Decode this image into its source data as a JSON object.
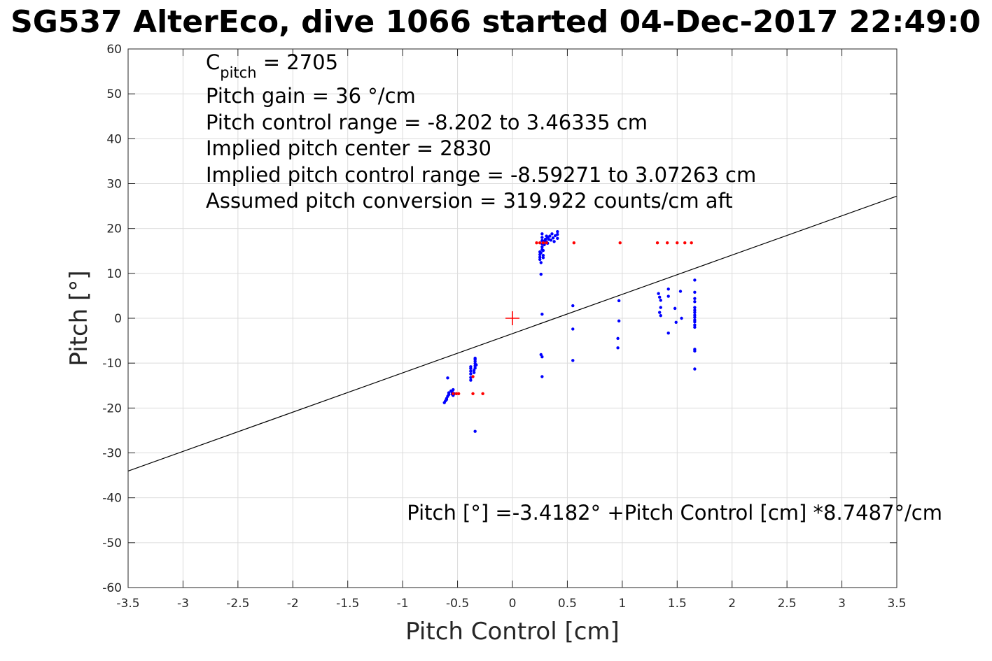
{
  "chart_data": {
    "type": "scatter",
    "title": "SG537 AlterEco, dive 1066 started 04-Dec-2017 22:49:0",
    "xlabel": "Pitch Control [cm]",
    "ylabel": "Pitch [°]",
    "xlim": [
      -3.5,
      3.5
    ],
    "ylim": [
      -60,
      60
    ],
    "xticks": [
      -3.5,
      -3,
      -2.5,
      -2,
      -1.5,
      -1,
      -0.5,
      0,
      0.5,
      1,
      1.5,
      2,
      2.5,
      3,
      3.5
    ],
    "xtick_labels": [
      "-3.5",
      "-3",
      "-2.5",
      "-2",
      "-1.5",
      "-1",
      "-0.5",
      "0",
      "0.5",
      "1",
      "1.5",
      "2",
      "2.5",
      "3",
      "3.5"
    ],
    "yticks": [
      -60,
      -50,
      -40,
      -30,
      -20,
      -10,
      0,
      10,
      20,
      30,
      40,
      50,
      60
    ],
    "ytick_labels": [
      "-60",
      "-50",
      "-40",
      "-30",
      "-20",
      "-10",
      "0",
      "10",
      "20",
      "30",
      "40",
      "50",
      "60"
    ],
    "grid": true,
    "colors": {
      "measured": "#0000ff",
      "commanded": "#ff0000",
      "fit": "#000000",
      "center": "#ff0000",
      "grid": "#dcdcdc",
      "axes": "#262626"
    },
    "annotations": {
      "c_pitch_main": "C",
      "c_pitch_sub": "pitch",
      "c_pitch_value": " = 2705",
      "pitch_gain": "Pitch gain = 36 °/cm",
      "pitch_control_range": "Pitch control range = -8.202 to 3.46335 cm",
      "implied_center": "Implied pitch center = 2830",
      "implied_range": "Implied pitch control range = -8.59271 to 3.07263 cm",
      "assumed_conversion": "Assumed pitch conversion = 319.922 counts/cm aft",
      "fit_equation": "Pitch [°] =-3.4182° +Pitch Control [cm] *8.7487°/cm"
    },
    "fit_line": {
      "intercept": -3.4182,
      "slope": 8.7487
    },
    "center_marker": {
      "x": 0,
      "y": 0
    },
    "series": [
      {
        "marker": "dot",
        "color": "#0000ff",
        "points": [
          [
            -0.62,
            -18.8
          ],
          [
            -0.61,
            -18.4
          ],
          [
            -0.6,
            -17.9
          ],
          [
            -0.59,
            -17.4
          ],
          [
            -0.58,
            -17.0
          ],
          [
            -0.6,
            -18.1
          ],
          [
            -0.58,
            -16.6
          ],
          [
            -0.56,
            -16.2
          ],
          [
            -0.55,
            -16.5
          ],
          [
            -0.55,
            -16.9
          ],
          [
            -0.54,
            -17.2
          ],
          [
            -0.53,
            -16.8
          ],
          [
            -0.54,
            -15.9
          ],
          [
            -0.55,
            -16.3
          ],
          [
            -0.59,
            -13.3
          ],
          [
            -0.34,
            -25.2
          ],
          [
            -0.38,
            -13.8
          ],
          [
            -0.38,
            -13.2
          ],
          [
            -0.38,
            -12.4
          ],
          [
            -0.38,
            -11.8
          ],
          [
            -0.38,
            -11.2
          ],
          [
            -0.38,
            -10.8
          ],
          [
            -0.35,
            -12.1
          ],
          [
            -0.35,
            -11.6
          ],
          [
            -0.34,
            -11.1
          ],
          [
            -0.34,
            -10.6
          ],
          [
            -0.34,
            -10.1
          ],
          [
            -0.34,
            -9.6
          ],
          [
            -0.34,
            -9.2
          ],
          [
            -0.34,
            -8.9
          ],
          [
            -0.33,
            -10.4
          ],
          [
            0.25,
            14.8
          ],
          [
            0.25,
            14.2
          ],
          [
            0.25,
            13.6
          ],
          [
            0.25,
            13.1
          ],
          [
            0.26,
            12.4
          ],
          [
            0.26,
            14.6
          ],
          [
            0.27,
            15.3
          ],
          [
            0.27,
            15.9
          ],
          [
            0.27,
            16.6
          ],
          [
            0.27,
            17.3
          ],
          [
            0.27,
            18.0
          ],
          [
            0.27,
            18.8
          ],
          [
            0.28,
            15.1
          ],
          [
            0.28,
            14.0
          ],
          [
            0.28,
            13.5
          ],
          [
            0.29,
            16.4
          ],
          [
            0.29,
            17.2
          ],
          [
            0.3,
            17.6
          ],
          [
            0.31,
            18.3
          ],
          [
            0.31,
            17.0
          ],
          [
            0.32,
            16.7
          ],
          [
            0.32,
            18.0
          ],
          [
            0.33,
            17.6
          ],
          [
            0.34,
            18.3
          ],
          [
            0.35,
            17.4
          ],
          [
            0.36,
            18.8
          ],
          [
            0.37,
            17.9
          ],
          [
            0.38,
            17.1
          ],
          [
            0.39,
            18.4
          ],
          [
            0.41,
            19.3
          ],
          [
            0.41,
            18.7
          ],
          [
            0.41,
            17.8
          ],
          [
            0.26,
            9.8
          ],
          [
            0.27,
            0.9
          ],
          [
            0.26,
            -8.1
          ],
          [
            0.27,
            -8.6
          ],
          [
            0.27,
            -13.0
          ],
          [
            0.55,
            2.8
          ],
          [
            0.55,
            -2.4
          ],
          [
            0.55,
            -9.4
          ],
          [
            0.97,
            3.9
          ],
          [
            0.97,
            -0.6
          ],
          [
            0.96,
            -4.5
          ],
          [
            0.96,
            -6.6
          ],
          [
            1.33,
            5.5
          ],
          [
            1.34,
            4.7
          ],
          [
            1.35,
            4.0
          ],
          [
            1.35,
            2.4
          ],
          [
            1.34,
            1.3
          ],
          [
            1.35,
            0.6
          ],
          [
            1.42,
            6.5
          ],
          [
            1.42,
            4.9
          ],
          [
            1.42,
            -3.3
          ],
          [
            1.48,
            2.2
          ],
          [
            1.49,
            -0.9
          ],
          [
            1.53,
            6.0
          ],
          [
            1.54,
            0.0
          ],
          [
            1.66,
            8.5
          ],
          [
            1.66,
            5.8
          ],
          [
            1.66,
            4.4
          ],
          [
            1.66,
            3.7
          ],
          [
            1.66,
            2.4
          ],
          [
            1.66,
            1.8
          ],
          [
            1.66,
            1.3
          ],
          [
            1.66,
            0.7
          ],
          [
            1.66,
            0.2
          ],
          [
            1.66,
            -0.4
          ],
          [
            1.66,
            -0.8
          ],
          [
            1.66,
            -1.5
          ],
          [
            1.66,
            -2.0
          ],
          [
            1.66,
            -6.9
          ],
          [
            1.66,
            -7.3
          ],
          [
            1.66,
            -11.3
          ]
        ]
      },
      {
        "marker": "dot",
        "color": "#ff0000",
        "points": [
          [
            -0.54,
            -16.8
          ],
          [
            -0.51,
            -16.8
          ],
          [
            -0.49,
            -16.8
          ],
          [
            -0.36,
            -16.8
          ],
          [
            -0.36,
            -13.0
          ],
          [
            -0.27,
            -16.8
          ],
          [
            0.22,
            16.8
          ],
          [
            0.25,
            16.8
          ],
          [
            0.28,
            16.8
          ],
          [
            0.31,
            16.8
          ],
          [
            0.56,
            16.8
          ],
          [
            0.98,
            16.8
          ],
          [
            1.32,
            16.8
          ],
          [
            1.41,
            16.8
          ],
          [
            1.5,
            16.8
          ],
          [
            1.57,
            16.8
          ],
          [
            1.63,
            16.8
          ]
        ]
      }
    ]
  }
}
